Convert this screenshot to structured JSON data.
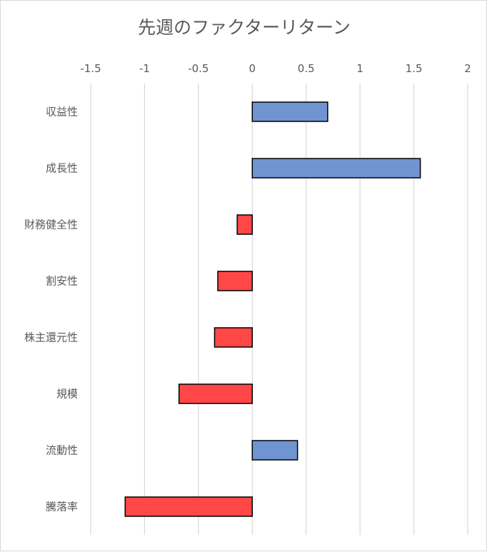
{
  "chart_data": {
    "type": "bar",
    "orientation": "horizontal",
    "title": "先週のファクターリターン",
    "categories": [
      "収益性",
      "成長性",
      "財務健全性",
      "割安性",
      "株主還元性",
      "規模",
      "流動性",
      "騰落率"
    ],
    "values": [
      0.7,
      1.56,
      -0.14,
      -0.32,
      -0.35,
      -0.68,
      0.42,
      -1.18
    ],
    "x_ticks": [
      "-1.5",
      "-1",
      "-0.5",
      "0",
      "0.5",
      "1",
      "1.5",
      "2"
    ],
    "xlim": [
      -1.5,
      2
    ],
    "grid": true,
    "axis_position": "top",
    "colors": {
      "positive": "#7094d0",
      "negative": "#ff4747",
      "grid": "#d9d9d9",
      "text": "#595959"
    }
  }
}
